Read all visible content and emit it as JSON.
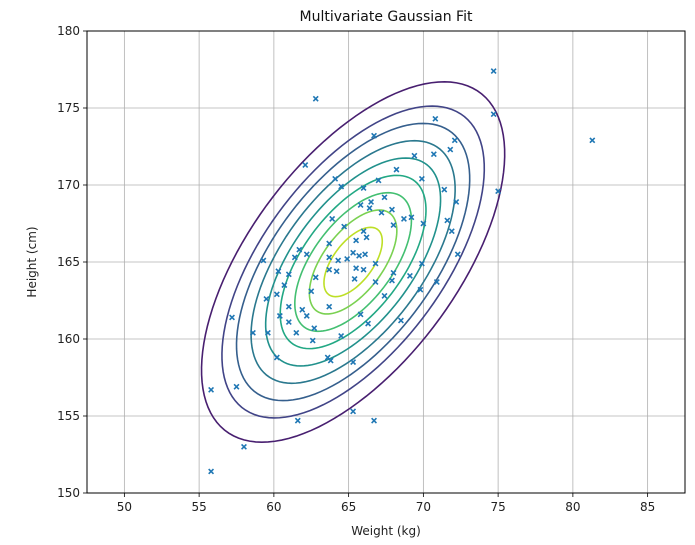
{
  "chart_data": {
    "type": "scatter",
    "title": "Multivariate Gaussian Fit",
    "xlabel": "Weight (kg)",
    "ylabel": "Height (cm)",
    "xlim": [
      47.5,
      87.5
    ],
    "ylim": [
      150,
      180
    ],
    "xticks": [
      "50",
      "55",
      "60",
      "65",
      "70",
      "75",
      "80",
      "85"
    ],
    "yticks": [
      "150",
      "155",
      "160",
      "165",
      "170",
      "175",
      "180"
    ],
    "grid": true,
    "marker": "x",
    "point_color": "#1f77b4",
    "points": [
      [
        62.8,
        175.6
      ],
      [
        74.7,
        177.4
      ],
      [
        81.3,
        172.9
      ],
      [
        74.7,
        174.6
      ],
      [
        70.8,
        174.3
      ],
      [
        72.1,
        172.9
      ],
      [
        71.8,
        172.3
      ],
      [
        66.7,
        173.2
      ],
      [
        62.1,
        171.3
      ],
      [
        64.1,
        170.4
      ],
      [
        64.5,
        169.9
      ],
      [
        66.0,
        169.8
      ],
      [
        69.4,
        171.9
      ],
      [
        70.7,
        172.0
      ],
      [
        71.4,
        169.7
      ],
      [
        72.2,
        168.9
      ],
      [
        75.0,
        169.6
      ],
      [
        67.0,
        170.3
      ],
      [
        65.8,
        168.7
      ],
      [
        66.5,
        168.9
      ],
      [
        67.4,
        169.2
      ],
      [
        68.2,
        171.0
      ],
      [
        69.9,
        170.4
      ],
      [
        63.9,
        167.8
      ],
      [
        64.7,
        167.3
      ],
      [
        66.0,
        167.0
      ],
      [
        66.4,
        168.5
      ],
      [
        67.2,
        168.2
      ],
      [
        67.9,
        168.4
      ],
      [
        68.0,
        167.4
      ],
      [
        68.7,
        167.8
      ],
      [
        69.2,
        167.9
      ],
      [
        70.0,
        167.5
      ],
      [
        71.6,
        167.7
      ],
      [
        71.9,
        167.0
      ],
      [
        63.7,
        166.2
      ],
      [
        65.5,
        166.4
      ],
      [
        66.2,
        166.6
      ],
      [
        61.7,
        165.8
      ],
      [
        62.2,
        165.5
      ],
      [
        61.4,
        165.3
      ],
      [
        59.3,
        165.1
      ],
      [
        63.7,
        165.3
      ],
      [
        64.3,
        165.1
      ],
      [
        64.9,
        165.2
      ],
      [
        65.3,
        165.6
      ],
      [
        65.7,
        165.4
      ],
      [
        66.1,
        165.5
      ],
      [
        65.5,
        164.6
      ],
      [
        66.8,
        164.9
      ],
      [
        66.0,
        164.5
      ],
      [
        60.3,
        164.4
      ],
      [
        61.0,
        164.2
      ],
      [
        62.8,
        164.0
      ],
      [
        63.7,
        164.5
      ],
      [
        64.2,
        164.4
      ],
      [
        68.0,
        164.3
      ],
      [
        69.9,
        164.9
      ],
      [
        72.3,
        165.5
      ],
      [
        60.7,
        163.5
      ],
      [
        62.5,
        163.1
      ],
      [
        65.4,
        163.9
      ],
      [
        66.8,
        163.7
      ],
      [
        67.9,
        163.8
      ],
      [
        69.1,
        164.1
      ],
      [
        70.9,
        163.7
      ],
      [
        59.5,
        162.6
      ],
      [
        60.2,
        162.9
      ],
      [
        61.0,
        162.1
      ],
      [
        61.9,
        161.9
      ],
      [
        63.7,
        162.1
      ],
      [
        67.4,
        162.8
      ],
      [
        69.8,
        163.2
      ],
      [
        60.4,
        161.5
      ],
      [
        61.0,
        161.1
      ],
      [
        62.2,
        161.5
      ],
      [
        62.7,
        160.7
      ],
      [
        65.8,
        161.6
      ],
      [
        66.3,
        161.0
      ],
      [
        68.5,
        161.2
      ],
      [
        57.2,
        161.4
      ],
      [
        58.6,
        160.4
      ],
      [
        59.6,
        160.4
      ],
      [
        61.5,
        160.4
      ],
      [
        62.6,
        159.9
      ],
      [
        64.5,
        160.2
      ],
      [
        63.8,
        158.6
      ],
      [
        63.6,
        158.8
      ],
      [
        60.2,
        158.8
      ],
      [
        65.3,
        158.5
      ],
      [
        55.8,
        156.7
      ],
      [
        57.5,
        156.9
      ],
      [
        61.6,
        154.7
      ],
      [
        65.3,
        155.3
      ],
      [
        66.7,
        154.7
      ],
      [
        58.0,
        153.0
      ],
      [
        55.8,
        151.4
      ]
    ],
    "contours": {
      "center": [
        65.3,
        165.0
      ],
      "sd": [
        3.9,
        4.5
      ],
      "correlation": 0.6,
      "levels_sigma": [
        0.5,
        0.75,
        1.0,
        1.25,
        1.5,
        1.75,
        2.0,
        2.25,
        2.6
      ],
      "colors": [
        "#bddf26",
        "#7ad151",
        "#43bf71",
        "#22a884",
        "#21918c",
        "#2a788e",
        "#355f8d",
        "#414487",
        "#481f70"
      ]
    }
  }
}
